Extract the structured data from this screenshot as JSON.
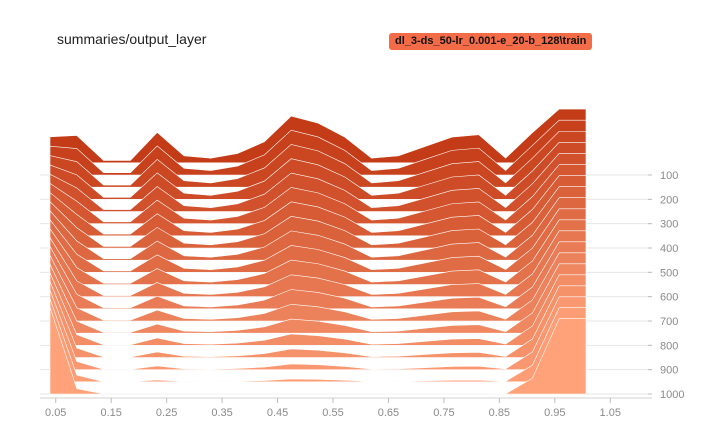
{
  "card": {
    "title": "summaries/output_layer",
    "run_label": "dl_3-ds_50-lr_0.001-e_20-b_128\\train"
  },
  "chart_data": {
    "type": "area",
    "subtype": "tensorboard-histogram-offset",
    "title": "summaries/output_layer",
    "series_name": "dl_3-ds_50-lr_0.001-e_20-b_128\\train",
    "x_ticks": [
      "0.05",
      "0.15",
      "0.25",
      "0.35",
      "0.45",
      "0.55",
      "0.65",
      "0.75",
      "0.85",
      "0.95",
      "1.05"
    ],
    "x_tick_values": [
      0.05,
      0.15,
      0.25,
      0.35,
      0.45,
      0.55,
      0.65,
      0.75,
      0.85,
      0.95,
      1.05
    ],
    "xlim": [
      0.0,
      1.1
    ],
    "y_ticks": [
      "100",
      "200",
      "300",
      "400",
      "500",
      "600",
      "700",
      "800",
      "900",
      "1000"
    ],
    "y_tick_values": [
      100,
      200,
      300,
      400,
      500,
      600,
      700,
      800,
      900,
      1000
    ],
    "ylim": [
      40,
      1000
    ],
    "colors": {
      "earliest": "#c43c17",
      "latest": "#ffa27a"
    },
    "steps": [
      50,
      100,
      150,
      200,
      250,
      300,
      350,
      400,
      450,
      500,
      550,
      600,
      650,
      700,
      750,
      800,
      850,
      900,
      950,
      1000
    ],
    "histogram_x": [
      0.0,
      0.05,
      0.1,
      0.15,
      0.2,
      0.25,
      0.3,
      0.35,
      0.4,
      0.45,
      0.5,
      0.55,
      0.6,
      0.65,
      0.7,
      0.75,
      0.8,
      0.85,
      0.9,
      0.95,
      1.0
    ],
    "first_step_profile": [
      0.0,
      0.55,
      0.05,
      0.05,
      0.65,
      0.15,
      0.1,
      0.2,
      0.45,
      1.0,
      0.85,
      0.55,
      0.1,
      0.15,
      0.35,
      0.55,
      0.6,
      0.1,
      0.55,
      0.7,
      0.7
    ]
  }
}
